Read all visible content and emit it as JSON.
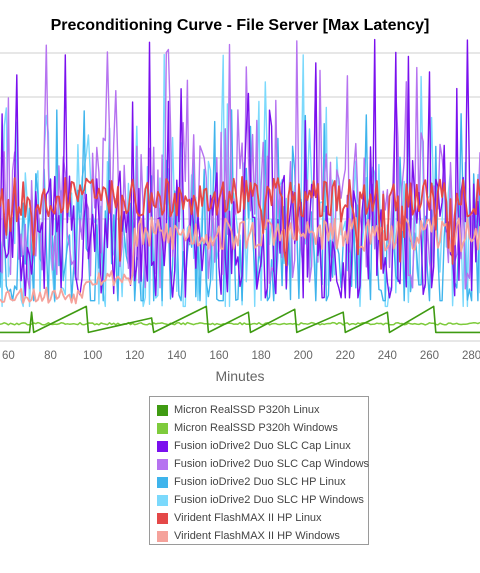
{
  "chart_data": {
    "type": "line",
    "title": "Preconditioning Curve - File Server [Max Latency]",
    "xlabel": "Minutes",
    "ylabel": "",
    "xlim": [
      56,
      284
    ],
    "x_ticks": [
      60,
      80,
      100,
      120,
      140,
      160,
      180,
      200,
      220,
      240,
      260,
      280
    ],
    "grid": true,
    "legend_position": "bottom",
    "series": [
      {
        "name": "Micron RealSSD P320h Linux",
        "color": "#3f9b12",
        "key_points": [
          [
            56,
            0.03
          ],
          [
            70,
            0.03
          ],
          [
            71,
            0.1
          ],
          [
            72,
            0.03
          ],
          [
            97,
            0.12
          ],
          [
            98,
            0.03
          ],
          [
            128,
            0.08
          ],
          [
            129,
            0.03
          ],
          [
            154,
            0.12
          ],
          [
            155,
            0.03
          ],
          [
            174,
            0.1
          ],
          [
            175,
            0.03
          ],
          [
            196,
            0.11
          ],
          [
            197,
            0.03
          ],
          [
            219,
            0.1
          ],
          [
            220,
            0.03
          ],
          [
            240,
            0.1
          ],
          [
            241,
            0.03
          ],
          [
            262,
            0.12
          ],
          [
            263,
            0.03
          ],
          [
            284,
            0.03
          ]
        ]
      },
      {
        "name": "Micron RealSSD P320h Windows",
        "color": "#7ecb3c",
        "key_points": [
          [
            56,
            0.06
          ],
          [
            284,
            0.05
          ]
        ]
      },
      {
        "name": "Fusion ioDrive2 Duo SLC Cap Linux",
        "color": "#7a10ee",
        "key_points": []
      },
      {
        "name": "Fusion ioDrive2 Duo SLC Cap Windows",
        "color": "#b673f0",
        "key_points": []
      },
      {
        "name": "Fusion ioDrive2 Duo SLC HP Linux",
        "color": "#3fb4ec",
        "key_points": []
      },
      {
        "name": "Fusion ioDrive2 Duo SLC HP Windows",
        "color": "#7bd9fc",
        "key_points": []
      },
      {
        "name": "Virident FlashMAX II HP Linux",
        "color": "#e44848",
        "key_points": []
      },
      {
        "name": "Virident FlashMAX II HP Windows",
        "color": "#f5a29b",
        "key_points": []
      }
    ]
  }
}
